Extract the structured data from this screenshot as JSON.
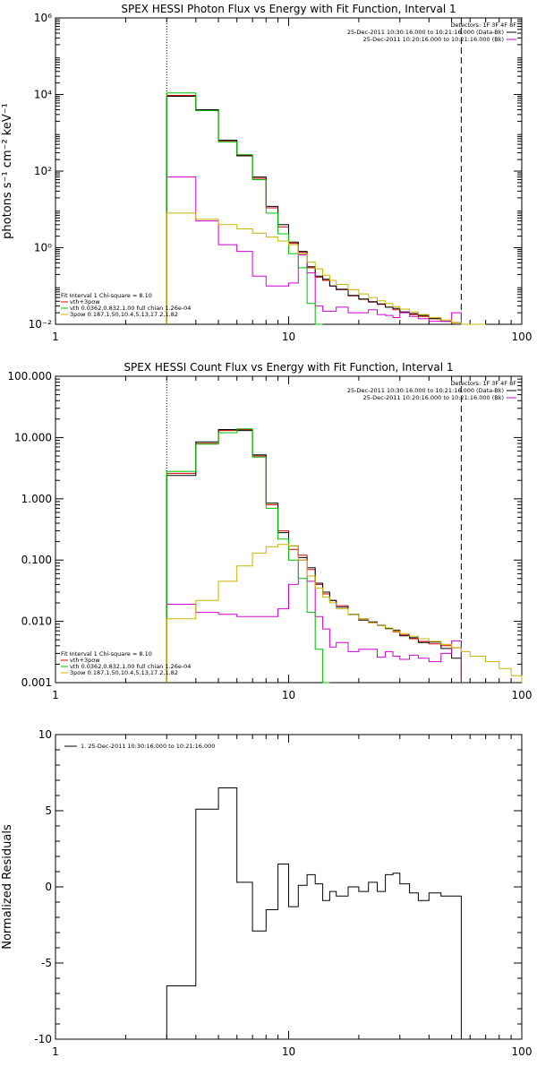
{
  "chart_data": [
    {
      "type": "line",
      "title": "SPEX HESSI Photon Flux vs Energy with Fit Function, Interval 1",
      "ylabel": "photons s⁻¹ cm⁻² keV⁻¹",
      "xscale": "log",
      "yscale": "log",
      "xlim": [
        1,
        100
      ],
      "ylim": [
        0.01,
        1000000
      ],
      "xticks": [
        1,
        10,
        100
      ],
      "xtick_labels": [
        "1",
        "10",
        "100"
      ],
      "yticks": [
        0.01,
        1,
        100,
        10000,
        1000000
      ],
      "ytick_labels": [
        "10⁻²",
        "10⁰",
        "10²",
        "10⁴",
        "10⁶"
      ],
      "vlines": [
        {
          "x": 3.0,
          "style": "dotted"
        },
        {
          "x": 55,
          "style": "dashed"
        }
      ],
      "legend_top": {
        "header": "Detectors: 1F 3F 4F 8F",
        "items": [
          {
            "label": "25-Dec-2011 10:30:16.000 to 10:21:16.000 (Data-Bk)",
            "color": "#000000"
          },
          {
            "label": "25-Dec-2011 10:20:16.000 to 10:21:16.000 (Bk)",
            "color": "#d000d0"
          }
        ]
      },
      "legend_fit": {
        "header": "Fit Interval 1   Chi-square = 8.10",
        "items": [
          {
            "label": "vth+3pow",
            "color": "#d00000"
          },
          {
            "label": "vth 0.0362,0.832,1.00   full chian 1.26e-04",
            "color": "#00c000"
          },
          {
            "label": "3pow 0.187,1.50,10.4,5.13,17.2,1.82",
            "color": "#c8b400"
          }
        ]
      },
      "edges": [
        3.0,
        4.0,
        5.0,
        6.0,
        7.0,
        8.0,
        9.0,
        10.0,
        11.0,
        12.0,
        13.0,
        14.0,
        15.0,
        16.0,
        18.0,
        20.0,
        22.0,
        24.0,
        26.0,
        28.0,
        30.0,
        33.0,
        36.0,
        40.0,
        45.0,
        50.0,
        55.0,
        60.0,
        70.0
      ],
      "series": [
        {
          "name": "vth+3pow",
          "color": "#d00000",
          "values": [
            9500,
            3800,
            600,
            260,
            65,
            11,
            3.5,
            1.3,
            0.75,
            0.3,
            0.17,
            0.14,
            0.1,
            0.08,
            0.055,
            0.045,
            0.038,
            0.033,
            0.028,
            0.024,
            0.021,
            0.018,
            0.016,
            0.014,
            0.012,
            0.011,
            null,
            null
          ]
        },
        {
          "name": "25-Dec-2011 10:30:16.000 to 10:21:16.000 (Data-Bk)",
          "color": "#000000",
          "values": [
            9000,
            4000,
            640,
            250,
            70,
            12,
            4.0,
            1.4,
            0.8,
            0.32,
            0.18,
            0.15,
            0.1,
            0.082,
            0.057,
            0.046,
            0.039,
            0.034,
            0.028,
            0.026,
            0.021,
            0.019,
            0.017,
            0.014,
            0.012,
            0.01,
            null,
            null
          ]
        },
        {
          "name": "25-Dec-2011 10:20:16.000 to 10:21:16.000 (Bk)",
          "color": "#d000d0",
          "values": [
            70,
            5,
            1.2,
            0.8,
            0.18,
            0.1,
            0.1,
            0.12,
            0.65,
            0.22,
            0.03,
            0.022,
            0.022,
            0.028,
            0.02,
            0.02,
            0.024,
            0.018,
            0.017,
            0.015,
            0.02,
            0.016,
            0.014,
            0.012,
            0.012,
            0.02,
            null,
            null
          ]
        },
        {
          "name": "vth 0.0362,0.832,1.00   full chian 1.26e-04",
          "color": "#00c000",
          "values": [
            11000,
            3800,
            580,
            270,
            60,
            8,
            2.3,
            0.7,
            0.3,
            0.035,
            0.008,
            null,
            null,
            null,
            null,
            null,
            null,
            null,
            null,
            null,
            null,
            null,
            null,
            null,
            null,
            null,
            null,
            null
          ]
        },
        {
          "name": "3pow 0.187,1.50,10.4,5.13,17.2,1.82",
          "color": "#c8b400",
          "values": [
            8,
            5.5,
            4,
            3.1,
            2.4,
            1.9,
            1.5,
            1.2,
            0.7,
            0.42,
            0.28,
            0.19,
            0.14,
            0.11,
            0.08,
            0.062,
            0.05,
            0.041,
            0.035,
            0.029,
            0.025,
            0.021,
            0.018,
            0.015,
            0.013,
            0.011,
            0.009,
            0.007
          ]
        }
      ]
    },
    {
      "type": "line",
      "title": "SPEX HESSI Count Flux vs Energy with Fit Function, Interval 1",
      "ylabel": "",
      "xscale": "log",
      "yscale": "log",
      "xlim": [
        1,
        100
      ],
      "ylim": [
        0.001,
        100
      ],
      "xticks": [
        1,
        10,
        100
      ],
      "xtick_labels": [
        "1",
        "10",
        "100"
      ],
      "yticks": [
        0.001,
        0.01,
        0.1,
        1,
        10,
        100
      ],
      "ytick_labels": [
        "0.001",
        "0.010",
        "0.100",
        "1.000",
        "10.000",
        "100.000"
      ],
      "vlines": [
        {
          "x": 3.0,
          "style": "dotted"
        },
        {
          "x": 55,
          "style": "dashed"
        }
      ],
      "legend_top": {
        "header": "Detectors: 1F 3F 4F 8F",
        "items": [
          {
            "label": "25-Dec-2011 10:30:16.000 to 10:21:16.000 (Data-Bk)",
            "color": "#000000"
          },
          {
            "label": "25-Dec-2011 10:20:16.000 to 10:21:16.000 (Bk)",
            "color": "#d000d0"
          }
        ]
      },
      "legend_fit": {
        "header": "Fit Interval 1   Chi-square = 8.10",
        "items": [
          {
            "label": "vth+3pow",
            "color": "#d00000"
          },
          {
            "label": "vth 0.0362,0.832,1.00   full chian 1.26e-04",
            "color": "#00c000"
          },
          {
            "label": "3pow 0.187,1.50,10.4,5.13,17.2,1.82",
            "color": "#c8b400"
          }
        ]
      },
      "edges": [
        3.0,
        4.0,
        5.0,
        6.0,
        7.0,
        8.0,
        9.0,
        10.0,
        11.0,
        12.0,
        13.0,
        14.0,
        15.0,
        16.0,
        18.0,
        20.0,
        22.0,
        24.0,
        26.0,
        28.0,
        30.0,
        33.0,
        36.0,
        40.0,
        45.0,
        50.0,
        55.0,
        60.0,
        70.0,
        80.0,
        90.0,
        100.0
      ],
      "series": [
        {
          "name": "vth+3pow",
          "color": "#d00000",
          "values": [
            2.6,
            8,
            13,
            13.5,
            5,
            0.8,
            0.3,
            0.15,
            0.12,
            0.07,
            0.04,
            0.028,
            0.022,
            0.018,
            0.013,
            0.011,
            0.0095,
            0.0085,
            0.0078,
            0.0068,
            0.006,
            0.0052,
            0.0047,
            0.0043,
            0.004,
            0.0037,
            null,
            null,
            null,
            null,
            null
          ]
        },
        {
          "name": "25-Dec-2011 10:30:16.000 to 10:21:16.000 (Data-Bk)",
          "color": "#000000",
          "values": [
            2.4,
            8.5,
            13.5,
            13,
            5.2,
            0.85,
            0.28,
            0.17,
            0.11,
            0.075,
            0.042,
            0.03,
            0.022,
            0.017,
            0.013,
            0.0105,
            0.0098,
            0.0086,
            0.0076,
            0.0072,
            0.0058,
            0.0054,
            0.0045,
            0.0046,
            0.0036,
            0.0025,
            null,
            null,
            null,
            null,
            null
          ]
        },
        {
          "name": "25-Dec-2011 10:20:16.000 to 10:21:16.000 (Bk)",
          "color": "#d000d0",
          "values": [
            0.019,
            0.014,
            0.013,
            0.012,
            0.012,
            0.012,
            0.016,
            0.04,
            0.1,
            0.045,
            0.012,
            0.0075,
            0.0038,
            0.0045,
            0.0032,
            0.0035,
            0.0035,
            0.0026,
            0.0032,
            0.0027,
            0.0024,
            0.0028,
            0.0025,
            0.0022,
            0.003,
            0.0048,
            null,
            null,
            null,
            null,
            null
          ]
        },
        {
          "name": "vth 0.0362,0.832,1.00   full chian 1.26e-04",
          "color": "#00c000",
          "values": [
            2.8,
            7.8,
            12,
            13.8,
            4.8,
            0.7,
            0.22,
            0.1,
            0.05,
            0.014,
            0.0035,
            0.0008,
            null,
            null,
            null,
            null,
            null,
            null,
            null,
            null,
            null,
            null,
            null,
            null,
            null,
            null,
            null,
            null,
            null,
            null,
            null
          ]
        },
        {
          "name": "3pow 0.187,1.50,10.4,5.13,17.2,1.82",
          "color": "#c8b400",
          "values": [
            0.011,
            0.022,
            0.045,
            0.08,
            0.13,
            0.165,
            0.18,
            0.17,
            0.1,
            0.055,
            0.035,
            0.025,
            0.02,
            0.016,
            0.013,
            0.011,
            0.0095,
            0.0085,
            0.0078,
            0.007,
            0.0063,
            0.0057,
            0.0052,
            0.0047,
            0.0042,
            0.0037,
            0.0032,
            0.0027,
            0.0022,
            0.0017,
            0.0013
          ]
        }
      ]
    },
    {
      "type": "line",
      "title": "",
      "ylabel": "Normalized Residuals",
      "xscale": "log",
      "yscale": "linear",
      "xlim": [
        1,
        100
      ],
      "ylim": [
        -10,
        10
      ],
      "xticks": [
        1,
        10,
        100
      ],
      "xtick_labels": [
        "1",
        "10",
        "100"
      ],
      "yticks": [
        -10,
        -5,
        0,
        5,
        10
      ],
      "ytick_labels": [
        "-10",
        "-5",
        "0",
        "5",
        "10"
      ],
      "vlines": [],
      "legend_top": {
        "header": "",
        "items": [
          {
            "label": "1. 25-Dec-2011 10:30:16.000 to 10:21:16.000",
            "color": "#000000"
          }
        ]
      },
      "legend_fit": null,
      "edges": [
        3.0,
        4.0,
        5.0,
        6.0,
        7.0,
        8.0,
        9.0,
        10.0,
        11.0,
        12.0,
        13.0,
        14.0,
        15.0,
        16.0,
        18.0,
        20.0,
        22.0,
        24.0,
        26.0,
        28.0,
        30.0,
        33.0,
        36.0,
        40.0,
        45.0,
        50.0,
        55.0
      ],
      "series": [
        {
          "name": "1. 25-Dec-2011 10:30:16.000 to 10:21:16.000",
          "color": "#000000",
          "values": [
            -6.5,
            5.1,
            6.5,
            0.3,
            -2.9,
            -1.5,
            1.5,
            -1.3,
            0.1,
            0.8,
            0.2,
            -0.9,
            -0.3,
            -0.6,
            0,
            -0.3,
            0.3,
            -0.3,
            0.8,
            0.9,
            0.2,
            -0.4,
            -0.9,
            -0.4,
            -0.6,
            -0.6
          ]
        }
      ]
    }
  ]
}
